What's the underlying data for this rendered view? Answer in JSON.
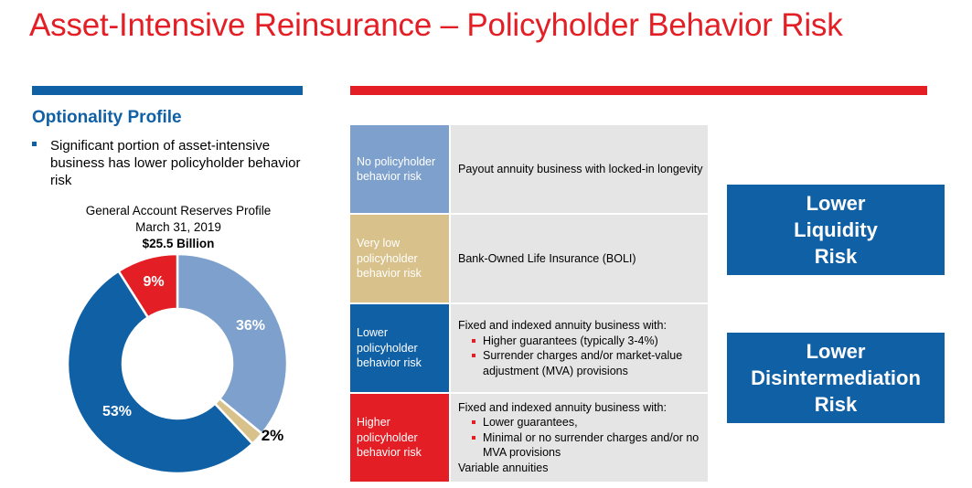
{
  "title": "Asset-Intensive Reinsurance – Policyholder Behavior Risk",
  "left": {
    "heading": "Optionality Profile",
    "bullet": "Significant portion of asset-intensive business has lower policyholder behavior risk"
  },
  "chart_data": {
    "type": "pie",
    "title": "General Account Reserves Profile",
    "subtitle": "March 31, 2019",
    "total_label": "$25.5 Billion",
    "labels": [
      "36%",
      "2%",
      "53%",
      "9%"
    ],
    "values": [
      36,
      2,
      53,
      9
    ],
    "colors": [
      "#7da1cc",
      "#d8c18a",
      "#1060a6",
      "#e31e25"
    ]
  },
  "table": {
    "rows": [
      {
        "category": "No policyholder behavior risk",
        "color": "#7da1cc",
        "description": "Payout annuity business with locked-in longevity"
      },
      {
        "category": "Very low policyholder behavior risk",
        "color": "#d8c18a",
        "description": "Bank-Owned Life Insurance (BOLI)"
      },
      {
        "category": "Lower policyholder behavior risk",
        "color": "#1060a6",
        "description": "Fixed and indexed annuity business with:",
        "bullets": [
          "Higher guarantees (typically 3-4%)",
          "Surrender charges and/or market-value adjustment (MVA) provisions"
        ]
      },
      {
        "category": "Higher policyholder behavior risk",
        "color": "#e31e25",
        "description": "Fixed and indexed annuity business with:",
        "bullets": [
          "Lower guarantees,",
          "Minimal or no surrender charges and/or no MVA provisions"
        ],
        "footer": "Variable annuities"
      }
    ]
  },
  "boxes": {
    "liquidity": [
      "Lower",
      "Liquidity",
      "Risk"
    ],
    "disintermediation": [
      "Lower",
      "Disintermediation",
      "Risk"
    ]
  }
}
